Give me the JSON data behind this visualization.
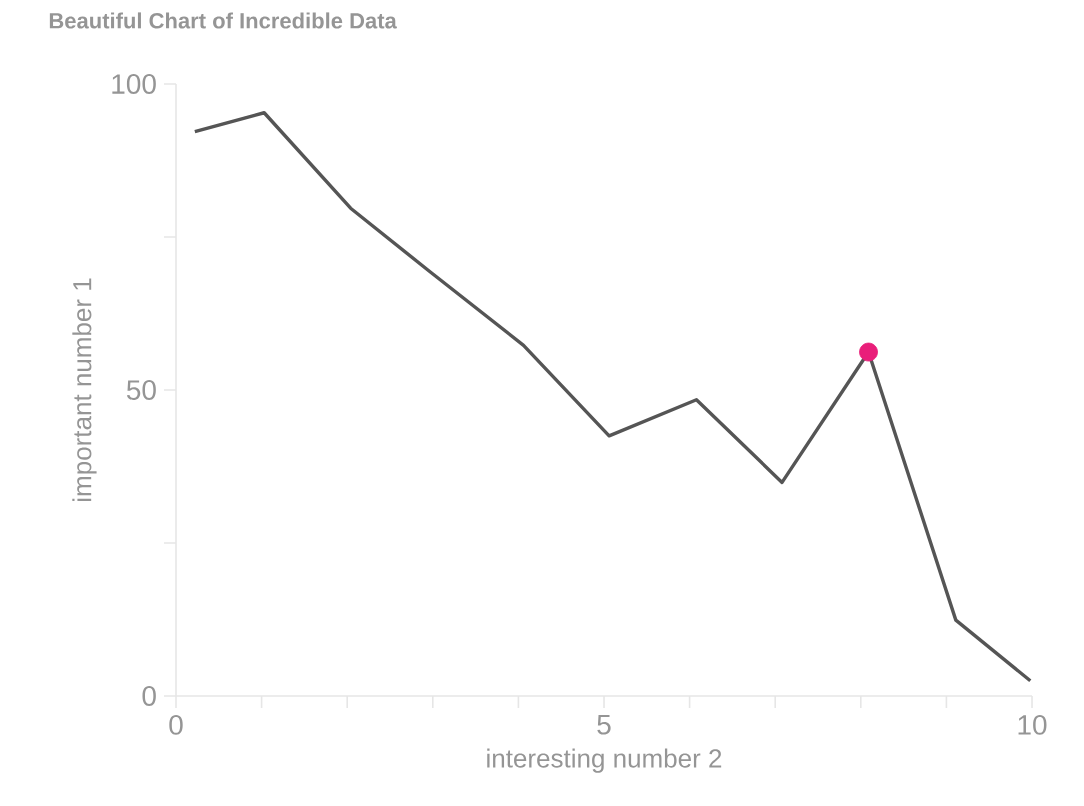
{
  "chart_data": {
    "type": "line",
    "title": "Beautiful Chart of Incredible Data",
    "xlabel": "interesting number 2",
    "ylabel": "important number 1",
    "series": [
      {
        "color": "#555555",
        "marker": "none",
        "x": [
          0.22,
          1.03,
          2.04,
          2.96,
          4.06,
          5.06,
          6.08,
          7.08,
          8.09,
          9.11,
          9.98
        ],
        "values": [
          92.2,
          95.3,
          79.7,
          69.4,
          57.3,
          42.5,
          48.4,
          34.9,
          56.2,
          12.4,
          2.5
        ]
      },
      {
        "type": "scatter",
        "color": "#e91e7a",
        "marker": "circle",
        "x": [
          8.09
        ],
        "values": [
          56.2
        ]
      }
    ],
    "xlim": [
      0,
      10
    ],
    "ylim": [
      0,
      100
    ],
    "xticks": [
      0,
      {
        "value": 1,
        "label": null
      },
      {
        "value": 2,
        "label": null
      },
      {
        "value": 3,
        "label": null
      },
      {
        "value": 4,
        "label": null
      },
      5,
      {
        "value": 6,
        "label": null
      },
      {
        "value": 7,
        "label": null
      },
      {
        "value": 8,
        "label": null
      },
      {
        "value": 9,
        "label": null
      },
      10
    ],
    "yticks": [
      0,
      {
        "value": 25,
        "label": null
      },
      50,
      {
        "value": 75,
        "label": null
      },
      100
    ],
    "grid": false
  }
}
